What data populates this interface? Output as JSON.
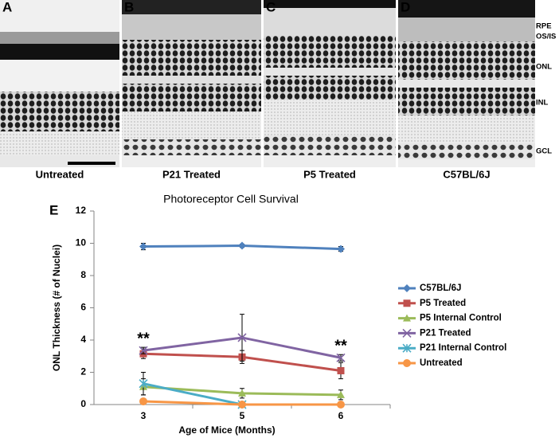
{
  "panels": [
    {
      "letter": "A",
      "caption": "Untreated"
    },
    {
      "letter": "B",
      "caption": "P21 Treated"
    },
    {
      "letter": "C",
      "caption": "P5 Treated"
    },
    {
      "letter": "D",
      "caption": "C57BL/6J"
    }
  ],
  "layer_labels": [
    "RPE",
    "OS/IS",
    "ONL",
    "INL",
    "GCL"
  ],
  "chart_panel_letter": "E",
  "chart_data": {
    "type": "line",
    "title": "Photoreceptor Cell Survival",
    "x_label": "Age of Mice (Months)",
    "y_label": "ONL Thickness (# of Nuclei)",
    "categories": [
      "3",
      "5",
      "6"
    ],
    "ylim": [
      0,
      12
    ],
    "yticks": [
      0,
      2,
      4,
      6,
      8,
      10,
      12
    ],
    "series": [
      {
        "name": "C57BL/6J",
        "color": "#4f81bd",
        "marker": "diamond",
        "values": [
          9.8,
          9.85,
          9.65
        ],
        "errors": [
          0.2,
          0.1,
          0.15
        ]
      },
      {
        "name": "P5 Treated",
        "color": "#c0504d",
        "marker": "square",
        "values": [
          3.15,
          2.95,
          2.1
        ],
        "errors": [
          0.3,
          0.4,
          0.5
        ]
      },
      {
        "name": "P5 Internal Control",
        "color": "#9bbb59",
        "marker": "triangle",
        "values": [
          1.1,
          0.7,
          0.6
        ],
        "errors": [
          0.5,
          0.3,
          0.3
        ]
      },
      {
        "name": "P21 Treated",
        "color": "#8064a2",
        "marker": "x",
        "values": [
          3.35,
          4.15,
          2.9
        ],
        "errors": [
          0.2,
          1.45,
          0.2
        ]
      },
      {
        "name": "P21 Internal Control",
        "color": "#4bacc6",
        "marker": "star",
        "values": [
          1.3,
          0,
          null
        ],
        "errors": [
          0.7,
          null,
          null
        ]
      },
      {
        "name": "Untreated",
        "color": "#f79646",
        "marker": "circle",
        "values": [
          0.2,
          0,
          0
        ],
        "errors": [
          null,
          null,
          null
        ]
      }
    ],
    "annotations": [
      {
        "text": "**",
        "category": "3"
      },
      {
        "text": "**",
        "category": "6"
      }
    ]
  }
}
